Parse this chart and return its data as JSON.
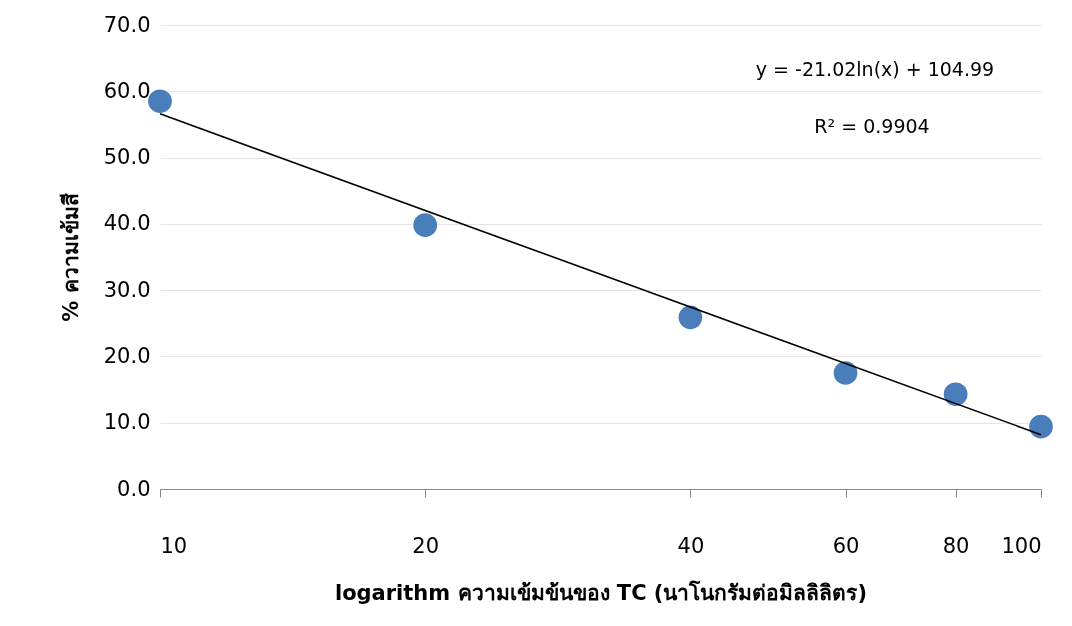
{
  "chart_data": {
    "type": "scatter",
    "xlabel": "logarithm ความเข้มข้นของ TC (นาโนกรัมต่อมิลลิลิตร)",
    "ylabel": "% ความเข้มสี",
    "log": "x",
    "xlim": [
      10,
      100
    ],
    "xticks": [
      10,
      20,
      40,
      60,
      80,
      100
    ],
    "ylim": [
      0,
      70
    ],
    "yticks": [
      {
        "value": 0,
        "label": "0.0"
      },
      {
        "value": 10,
        "label": "10.0"
      },
      {
        "value": 20,
        "label": "20.0"
      },
      {
        "value": 30,
        "label": "30.0"
      },
      {
        "value": 40,
        "label": "40.0"
      },
      {
        "value": 50,
        "label": "50.0"
      },
      {
        "value": 60,
        "label": "60.0"
      },
      {
        "value": 70,
        "label": "70.0"
      }
    ],
    "grid": "y",
    "series": [
      {
        "marker": "circle",
        "color": "#4a7ebb",
        "x": [
          10,
          20,
          40,
          60,
          80,
          100
        ],
        "values": [
          58.5,
          39.8,
          25.9,
          17.5,
          14.3,
          9.4
        ]
      },
      {
        "type": "line",
        "color": "#000000",
        "x": [
          10,
          100
        ],
        "values": [
          56.6,
          8.2
        ]
      }
    ],
    "annotations": [
      "y = -21.02ln(x) + 104.99",
      "R² = 0.9904"
    ]
  }
}
